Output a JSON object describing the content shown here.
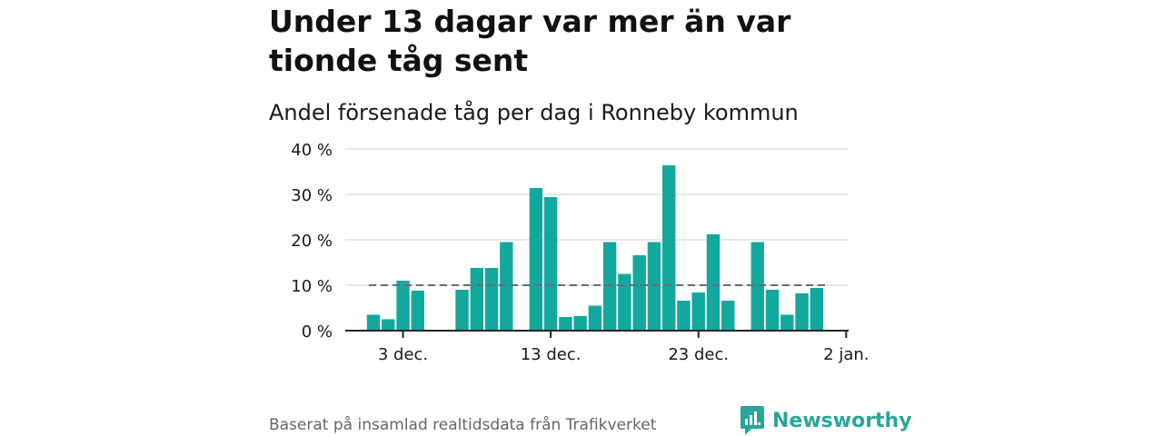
{
  "header": {
    "title": "Under 13 dagar var mer än var tionde tåg sent",
    "subtitle": "Andel försenade tåg per dag i Ronneby kommun"
  },
  "footer": {
    "source": "Baserat på insamlad realtidsdata från Trafikverket",
    "brand": "Newsworthy",
    "brand_icon": "newsworthy-logo-icon"
  },
  "colors": {
    "bar": "#13a89e",
    "reference_line": "#6b6b7b",
    "gridline": "#d9d9d9",
    "axis": "#222222",
    "brand": "#2aa59a"
  },
  "chart_data": {
    "type": "bar",
    "x": [
      "2023-12-01",
      "2023-12-02",
      "2023-12-03",
      "2023-12-04",
      "2023-12-05",
      "2023-12-06",
      "2023-12-07",
      "2023-12-08",
      "2023-12-09",
      "2023-12-10",
      "2023-12-11",
      "2023-12-12",
      "2023-12-13",
      "2023-12-14",
      "2023-12-15",
      "2023-12-16",
      "2023-12-17",
      "2023-12-18",
      "2023-12-19",
      "2023-12-20",
      "2023-12-21",
      "2023-12-22",
      "2023-12-23",
      "2023-12-24",
      "2023-12-25",
      "2023-12-26",
      "2023-12-27",
      "2023-12-28",
      "2023-12-29",
      "2023-12-30",
      "2023-12-31"
    ],
    "values": [
      3.5,
      2.5,
      11,
      8.8,
      null,
      null,
      9,
      13.8,
      13.8,
      19.5,
      null,
      31.4,
      29.4,
      3,
      3.2,
      5.5,
      19.5,
      12.5,
      16.6,
      19.5,
      36.4,
      6.6,
      8.4,
      21.2,
      6.6,
      null,
      19.5,
      9,
      3.5,
      8.2,
      9.4
    ],
    "reference_line": 10,
    "yticks": [
      0,
      10,
      20,
      30,
      40
    ],
    "ytick_labels": [
      "0 %",
      "10 %",
      "20 %",
      "30 %",
      "40 %"
    ],
    "xticks": [
      "2023-12-03",
      "2023-12-13",
      "2023-12-23",
      "2024-01-02"
    ],
    "xtick_labels": [
      "3 dec.",
      "13 dec.",
      "23 dec.",
      "2 jan."
    ],
    "ylim": [
      0,
      40
    ],
    "xlim": [
      "2023-11-30",
      "2024-01-02"
    ],
    "grid": true,
    "xlabel": "",
    "ylabel": ""
  }
}
